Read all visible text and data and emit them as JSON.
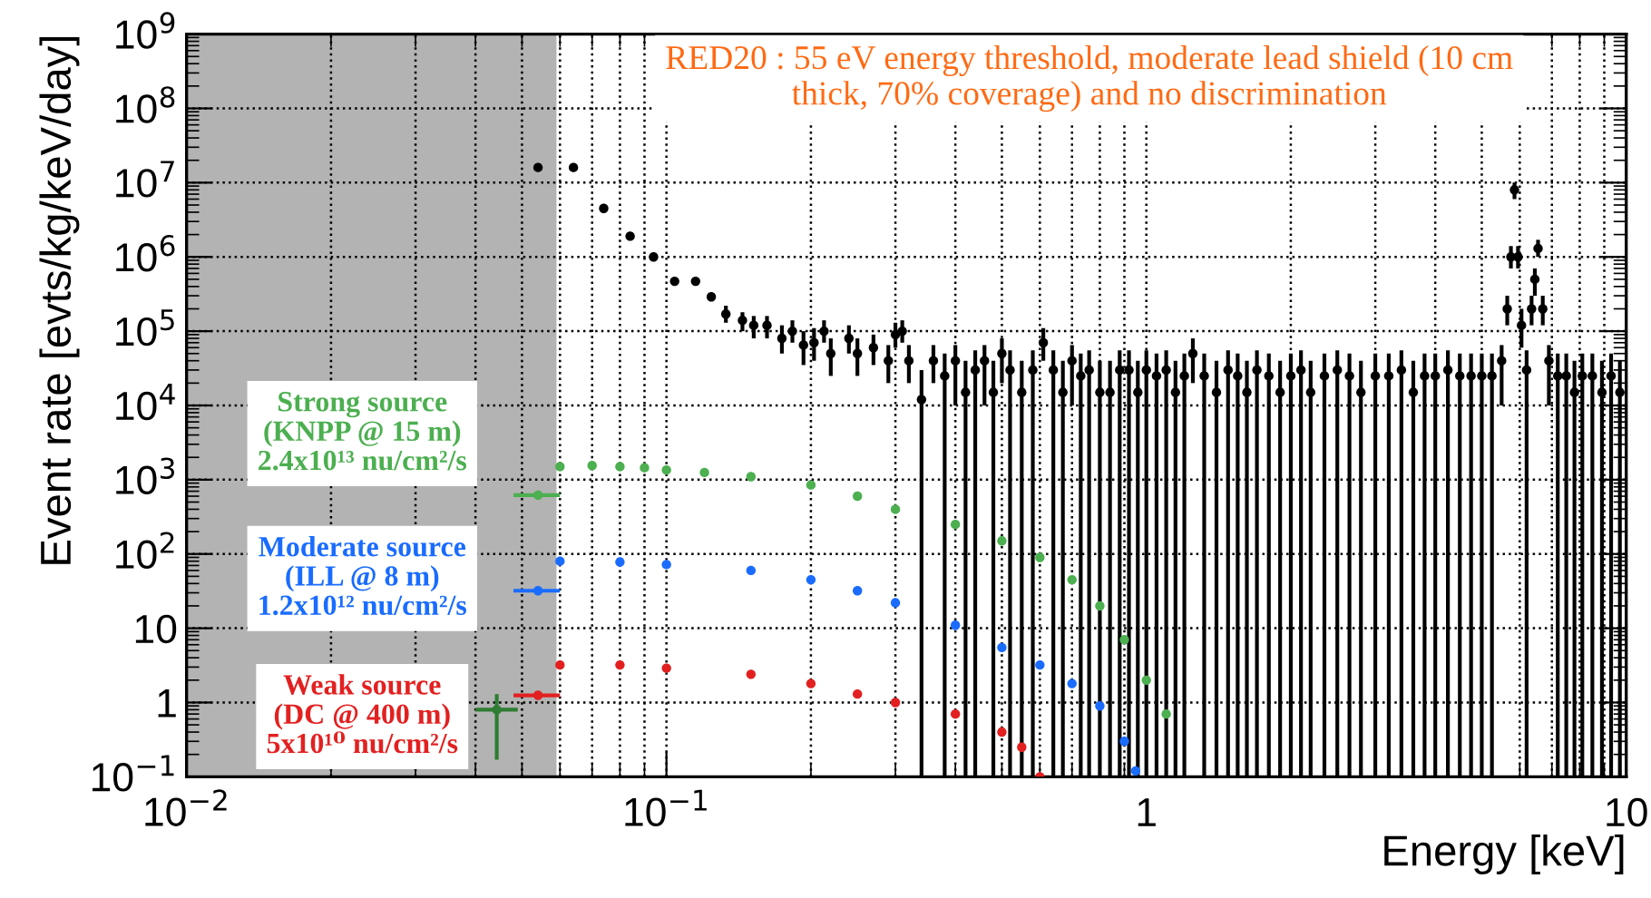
{
  "chart_data": {
    "type": "scatter",
    "xlabel": "Energy [keV]",
    "ylabel": "Event rate [evts/kg/keV/day]",
    "log": "xy",
    "grid": true,
    "marker": "circle",
    "xlim": [
      0.01,
      10
    ],
    "xticks": [
      {
        "value": 0.01,
        "label": "10$^{−2}$"
      },
      {
        "value": 0.1,
        "label": "10$^{−1}$"
      },
      1,
      10
    ],
    "ylim": [
      0.1,
      1000000000
    ],
    "yticks": [
      {
        "value": 0.1,
        "label": "10$^{−1}$"
      },
      1,
      10,
      {
        "value": 100,
        "label": "10$^{2}$"
      },
      {
        "value": 1000,
        "label": "10$^{3}$"
      },
      {
        "value": 10000,
        "label": "10$^{4}$"
      },
      {
        "value": 100000,
        "label": "10$^{5}$"
      },
      {
        "value": 1000000,
        "label": "10$^{6}$"
      },
      {
        "value": 10000000,
        "label": "10$^{7}$"
      },
      {
        "value": 100000000,
        "label": "10$^{8}$"
      },
      {
        "value": 1000000000,
        "label": "10$^{9}$"
      }
    ],
    "bands": [
      {
        "axis": "x",
        "from": 0.01,
        "to": 0.059,
        "color": "#b3b3b3"
      }
    ],
    "annotations": [
      "RED20 : 55 eV energy threshold, moderate lead shield (10 cm\nthick, 70% coverage) and no discrimination"
    ],
    "series": [
      {
        "color": "#000000",
        "x": [
          0.054,
          0.064,
          0.074,
          0.084,
          0.094,
          0.104,
          0.115,
          0.124,
          0.133,
          0.144,
          0.152,
          0.162,
          0.174,
          0.183,
          0.193,
          0.203,
          0.213,
          0.22,
          0.24,
          0.25,
          0.27,
          0.29,
          0.3,
          0.31,
          0.32,
          0.34,
          0.36,
          0.38,
          0.4,
          0.42,
          0.44,
          0.46,
          0.48,
          0.5,
          0.52,
          0.55,
          0.58,
          0.61,
          0.64,
          0.67,
          0.7,
          0.73,
          0.76,
          0.8,
          0.84,
          0.88,
          0.92,
          0.96,
          1.0,
          1.05,
          1.1,
          1.15,
          1.2,
          1.25,
          1.32,
          1.4,
          1.48,
          1.55,
          1.62,
          1.7,
          1.8,
          1.9,
          2.0,
          2.1,
          2.2,
          2.35,
          2.5,
          2.65,
          2.8,
          3.0,
          3.2,
          3.4,
          3.6,
          3.8,
          4.0,
          4.25,
          4.5,
          4.75,
          5.0,
          5.25,
          5.5,
          5.65,
          5.75,
          5.85,
          5.95,
          6.05,
          6.2,
          6.35,
          6.45,
          6.55,
          6.7,
          6.9,
          7.2,
          7.5,
          7.8,
          8.1,
          8.5,
          8.9,
          9.3,
          9.7
        ],
        "values": [
          16000000,
          16000000,
          4500000,
          1900000,
          1000000,
          470000,
          470000,
          290000,
          170000,
          140000,
          120000,
          120000,
          80000,
          100000,
          65000,
          70000,
          100000,
          50000,
          80000,
          50000,
          60000,
          40000,
          90000,
          100000,
          40000,
          12000,
          40000,
          25000,
          40000,
          15000,
          30000,
          40000,
          15000,
          50000,
          30000,
          15000,
          30000,
          70000,
          30000,
          15000,
          40000,
          25000,
          30000,
          15000,
          15000,
          30000,
          30000,
          15000,
          30000,
          25000,
          30000,
          15000,
          25000,
          50000,
          25000,
          15000,
          30000,
          25000,
          15000,
          30000,
          25000,
          15000,
          25000,
          30000,
          15000,
          25000,
          30000,
          25000,
          15000,
          25000,
          25000,
          30000,
          15000,
          25000,
          25000,
          30000,
          25000,
          25000,
          25000,
          25000,
          40000,
          200000,
          1000000,
          8000000,
          1000000,
          120000,
          30000,
          200000,
          500000,
          1300000,
          200000,
          40000,
          25000,
          25000,
          15000,
          25000,
          25000,
          15000,
          25000,
          15000
        ],
        "errors": [
          null,
          null,
          null,
          null,
          null,
          null,
          null,
          null,
          [
            130000,
            220000
          ],
          [
            100000,
            180000
          ],
          [
            80000,
            160000
          ],
          [
            80000,
            160000
          ],
          [
            50000,
            120000
          ],
          [
            70000,
            140000
          ],
          [
            35000,
            100000
          ],
          [
            40000,
            110000
          ],
          [
            70000,
            140000
          ],
          [
            25000,
            80000
          ],
          [
            50000,
            120000
          ],
          [
            25000,
            80000
          ],
          [
            35000,
            90000
          ],
          [
            20000,
            65000
          ],
          [
            60000,
            130000
          ],
          [
            70000,
            140000
          ],
          [
            20000,
            65000
          ],
          [
            0.1,
            30000
          ],
          [
            20000,
            65000
          ],
          [
            0.1,
            50000
          ],
          [
            10000,
            65000
          ],
          [
            0.1,
            40000
          ],
          [
            0.1,
            55000
          ],
          [
            10000,
            65000
          ],
          [
            0.1,
            40000
          ],
          [
            20000,
            80000
          ],
          [
            0.1,
            55000
          ],
          [
            0.1,
            40000
          ],
          [
            0.1,
            55000
          ],
          [
            40000,
            110000
          ],
          [
            0.1,
            55000
          ],
          [
            0.1,
            40000
          ],
          [
            10000,
            65000
          ],
          [
            0.1,
            50000
          ],
          [
            0.1,
            55000
          ],
          [
            0.1,
            40000
          ],
          [
            0.1,
            40000
          ],
          [
            0.1,
            55000
          ],
          [
            0.1,
            55000
          ],
          [
            0.1,
            40000
          ],
          [
            0.1,
            55000
          ],
          [
            0.1,
            50000
          ],
          [
            0.1,
            55000
          ],
          [
            0.1,
            40000
          ],
          [
            0.1,
            50000
          ],
          [
            20000,
            80000
          ],
          [
            0.1,
            50000
          ],
          [
            0.1,
            40000
          ],
          [
            0.1,
            55000
          ],
          [
            0.1,
            50000
          ],
          [
            0.1,
            40000
          ],
          [
            0.1,
            55000
          ],
          [
            0.1,
            50000
          ],
          [
            0.1,
            40000
          ],
          [
            0.1,
            50000
          ],
          [
            0.1,
            55000
          ],
          [
            0.1,
            40000
          ],
          [
            0.1,
            50000
          ],
          [
            0.1,
            55000
          ],
          [
            0.1,
            50000
          ],
          [
            0.1,
            40000
          ],
          [
            0.1,
            50000
          ],
          [
            0.1,
            50000
          ],
          [
            0.1,
            55000
          ],
          [
            0.1,
            40000
          ],
          [
            0.1,
            50000
          ],
          [
            0.1,
            50000
          ],
          [
            0.1,
            55000
          ],
          [
            0.1,
            50000
          ],
          [
            0.1,
            50000
          ],
          [
            0.1,
            50000
          ],
          [
            0.1,
            50000
          ],
          [
            10000,
            65000
          ],
          [
            120000,
            300000
          ],
          [
            700000,
            1400000
          ],
          [
            6000000,
            10000000
          ],
          [
            700000,
            1400000
          ],
          [
            60000,
            200000
          ],
          [
            0.1,
            55000
          ],
          [
            120000,
            300000
          ],
          [
            300000,
            700000
          ],
          [
            1000000,
            1700000
          ],
          [
            120000,
            300000
          ],
          [
            10000,
            65000
          ],
          [
            0.1,
            50000
          ],
          [
            0.1,
            50000
          ],
          [
            0.1,
            40000
          ],
          [
            0.1,
            50000
          ],
          [
            0.1,
            50000
          ],
          [
            0.1,
            40000
          ],
          [
            0.1,
            50000
          ],
          [
            0.1,
            40000
          ]
        ]
      },
      {
        "name": "Strong source\n(KNPP @ 15 m)\n2.4x10¹³ nu/cm²/s",
        "color": "#4caf50",
        "x": [
          0.06,
          0.07,
          0.08,
          0.09,
          0.1,
          0.12,
          0.15,
          0.2,
          0.25,
          0.3,
          0.4,
          0.5,
          0.6,
          0.7,
          0.8,
          0.9,
          1.0,
          1.1
        ],
        "values": [
          1500,
          1550,
          1500,
          1450,
          1350,
          1250,
          1100,
          850,
          600,
          400,
          250,
          150,
          90,
          45,
          20,
          7,
          2,
          0.7
        ]
      },
      {
        "name": "Moderate source\n(ILL @ 8 m)\n1.2x10¹² nu/cm²/s",
        "color": "#1a6cff",
        "x": [
          0.06,
          0.08,
          0.1,
          0.15,
          0.2,
          0.25,
          0.3,
          0.4,
          0.5,
          0.6,
          0.7,
          0.8,
          0.9,
          0.95
        ],
        "values": [
          80,
          78,
          72,
          60,
          45,
          32,
          22,
          11,
          5.5,
          3.2,
          1.8,
          0.9,
          0.3,
          0.12
        ]
      },
      {
        "name": "Weak source\n(DC @ 400 m)\n5x10¹⁰ nu/cm²/s",
        "color": "#e32020",
        "x": [
          0.06,
          0.08,
          0.1,
          0.15,
          0.2,
          0.25,
          0.3,
          0.4,
          0.5,
          0.55,
          0.6
        ],
        "values": [
          3.2,
          3.2,
          2.9,
          2.4,
          1.8,
          1.3,
          1.0,
          0.7,
          0.4,
          0.25,
          0.1
        ]
      },
      {
        "color": "#4caf50",
        "x": [
          0.054
        ],
        "values": [
          620
        ],
        "xerrors": [
          [
            0.048,
            0.06
          ]
        ]
      },
      {
        "color": "#1a6cff",
        "x": [
          0.054
        ],
        "values": [
          32
        ],
        "xerrors": [
          [
            0.048,
            0.06
          ]
        ]
      },
      {
        "color": "#e32020",
        "x": [
          0.054
        ],
        "values": [
          1.25
        ],
        "xerrors": [
          [
            0.048,
            0.06
          ]
        ]
      },
      {
        "color": "#2e7d32",
        "x": [
          0.0443
        ],
        "values": [
          0.8
        ],
        "errors": [
          [
            0.17,
            1.3
          ]
        ],
        "xerrors": [
          [
            0.04,
            0.049
          ]
        ]
      }
    ]
  }
}
